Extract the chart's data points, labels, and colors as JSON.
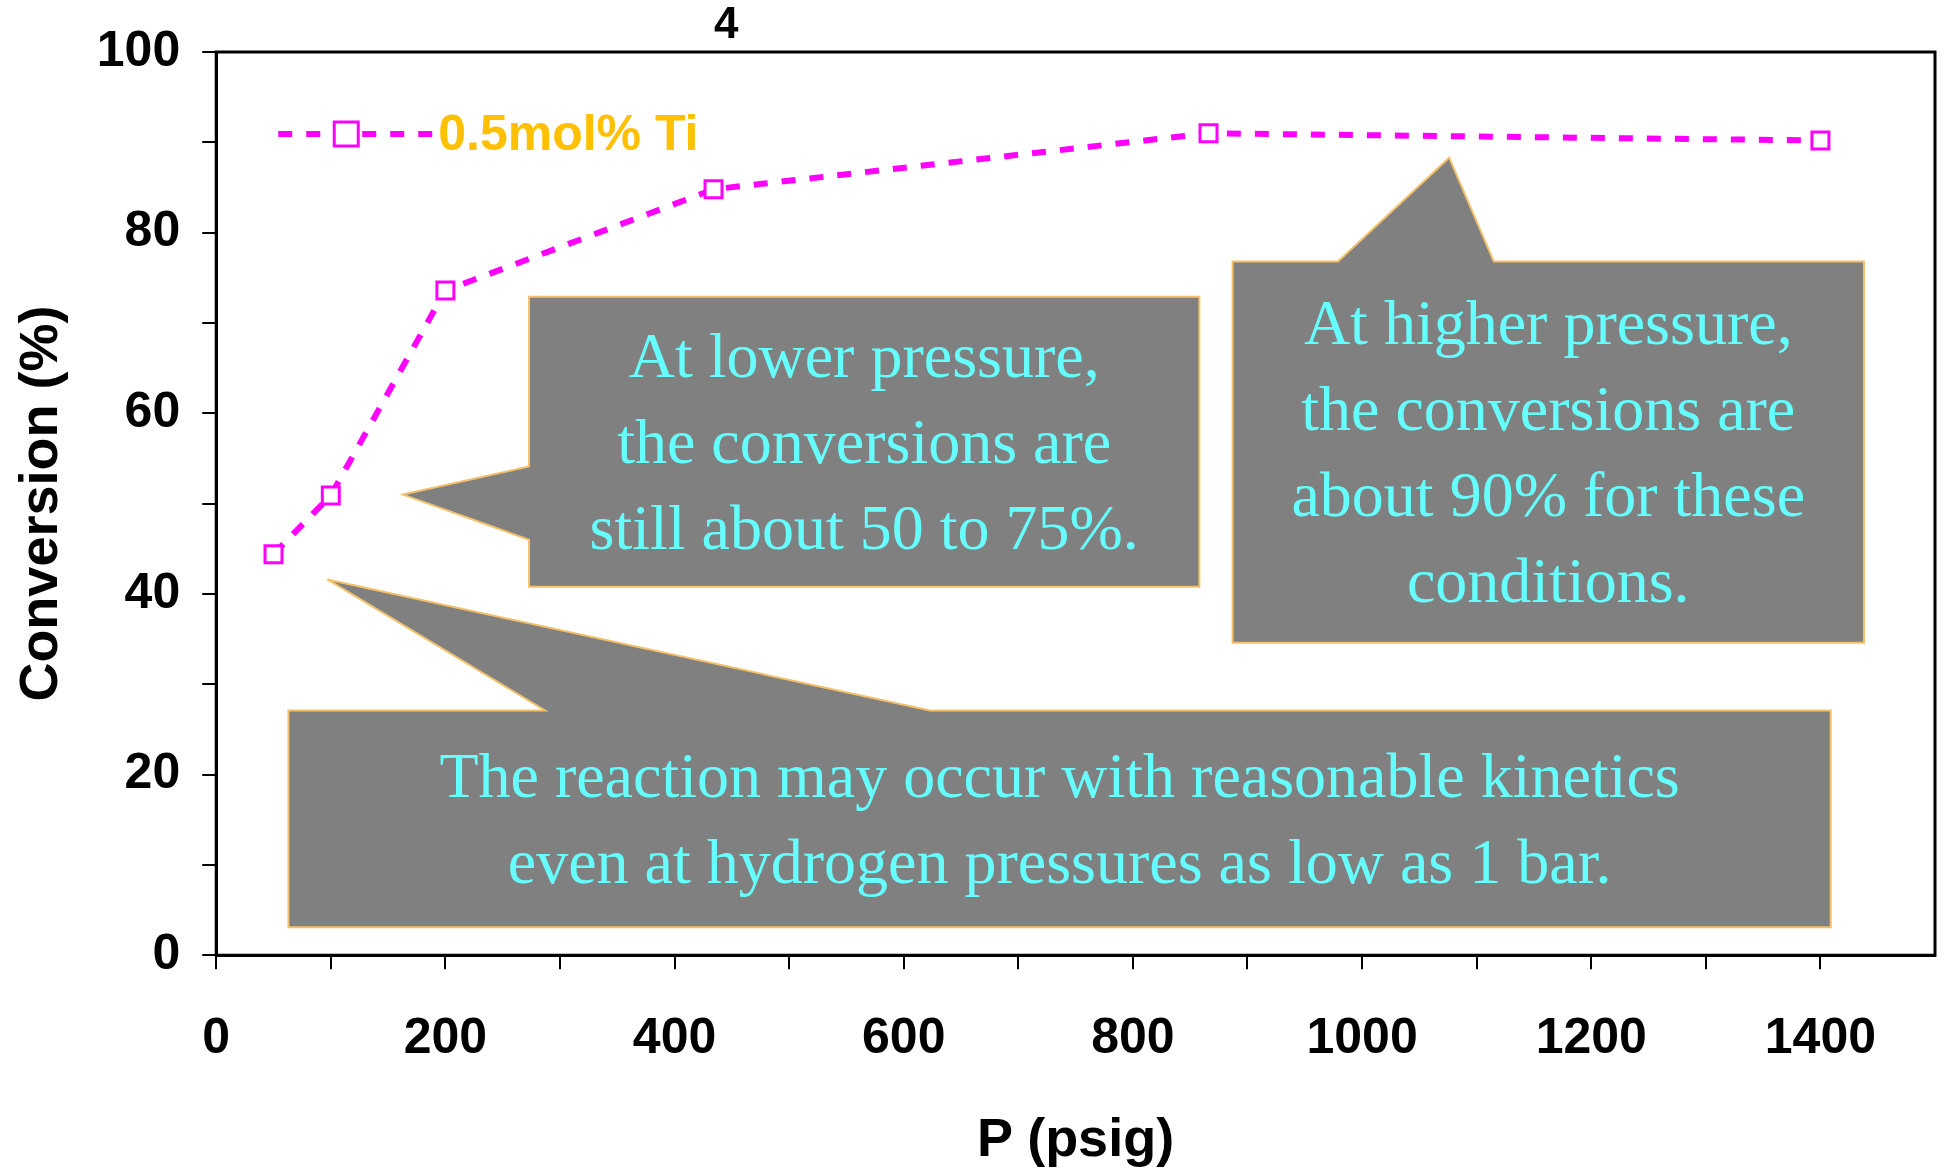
{
  "chart_data": {
    "type": "line",
    "title": "4",
    "xlabel": "P (psig)",
    "ylabel": "Conversion (%)",
    "x": [
      50,
      100,
      200,
      434,
      866,
      1400
    ],
    "series": [
      {
        "name": "0.5mol% Ti",
        "color": "#ff00ff",
        "values": [
          44.4,
          50.9,
          73.6,
          84.8,
          91.0,
          90.2
        ]
      }
    ],
    "xlim": [
      0,
      1500
    ],
    "ylim": [
      0,
      100
    ],
    "xticks": [
      0,
      {
        "value": 100,
        "label": null
      },
      200,
      {
        "value": 300,
        "label": null
      },
      400,
      {
        "value": 500,
        "label": null
      },
      600,
      {
        "value": 700,
        "label": null
      },
      800,
      {
        "value": 900,
        "label": null
      },
      1000,
      {
        "value": 1100,
        "label": null
      },
      1200,
      {
        "value": 1300,
        "label": null
      },
      1400
    ],
    "yticks": [
      0,
      {
        "value": 10,
        "label": null
      },
      20,
      {
        "value": 30,
        "label": null
      },
      40,
      {
        "value": 50,
        "label": null
      },
      60,
      {
        "value": 70,
        "label": null
      },
      80,
      {
        "value": 90,
        "label": null
      },
      100
    ],
    "grid": false,
    "legend": "top left",
    "marker": "square",
    "line_style": "dashed",
    "annotations": [
      "At lower pressure,\nthe conversions are\nstill about 50 to 75%.",
      "At higher pressure,\nthe conversions are\nabout 90% for these\nconditions.",
      "The reaction may occur with reasonable kinetics\neven at hydrogen pressures as low as 1 bar."
    ]
  }
}
